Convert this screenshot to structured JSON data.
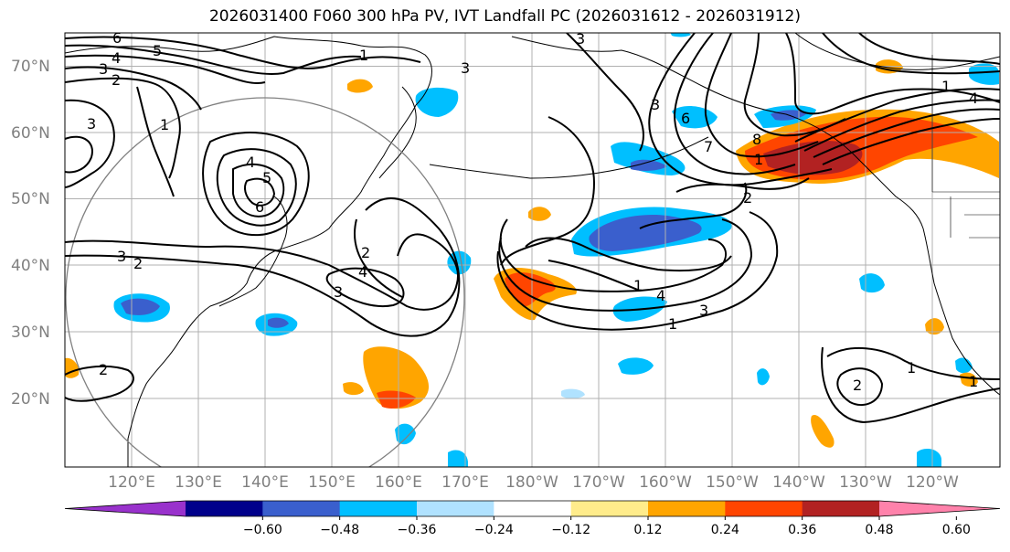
{
  "title": "2026031400 F060 300 hPa PV, IVT Landfall PC (2026031612 - 2026031912)",
  "map": {
    "lat_labels": [
      "70°N",
      "60°N",
      "50°N",
      "40°N",
      "30°N",
      "20°N"
    ],
    "lon_labels": [
      "120°E",
      "130°E",
      "140°E",
      "150°E",
      "160°E",
      "170°E",
      "180°W",
      "170°W",
      "160°W",
      "150°W",
      "140°W",
      "130°W",
      "120°W"
    ],
    "contour_labels": [
      "6",
      "5",
      "4",
      "3",
      "2",
      "1",
      "3",
      "1",
      "3",
      "5",
      "4",
      "6",
      "3",
      "2",
      "4",
      "3",
      "2",
      "1",
      "3",
      "4",
      "1",
      "2",
      "3",
      "6",
      "7",
      "8",
      "1",
      "3",
      "2",
      "1",
      "4",
      "1",
      "2",
      "1"
    ],
    "landfall_highlight_color": "#a6001a",
    "ocean_color": "#ffffff",
    "land_outline_color": "#000000"
  },
  "colorbar": {
    "colors": [
      "#9932cc",
      "#00008b",
      "#3a5fcd",
      "#00bfff",
      "#b0e2ff",
      "#ffffff",
      "#ffec8b",
      "#ffa500",
      "#ff4500",
      "#b22222",
      "#ff82ab"
    ],
    "tick_labels": [
      "−0.60",
      "−0.48",
      "−0.36",
      "−0.24",
      "−0.12",
      "0.12",
      "0.24",
      "0.36",
      "0.48",
      "0.60"
    ],
    "extend": "both"
  }
}
